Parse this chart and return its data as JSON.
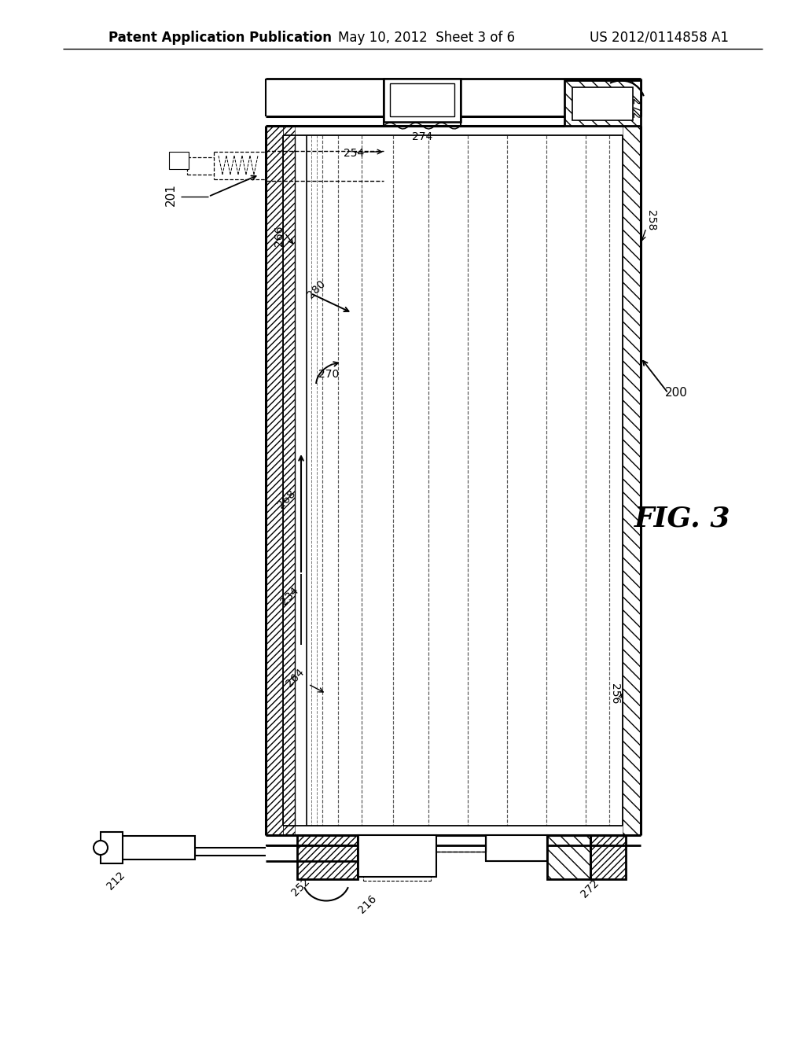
{
  "header_left": "Patent Application Publication",
  "header_mid": "May 10, 2012  Sheet 3 of 6",
  "header_right": "US 2012/0114858 A1",
  "fig_label": "FIG. 3",
  "bg_color": "#ffffff"
}
